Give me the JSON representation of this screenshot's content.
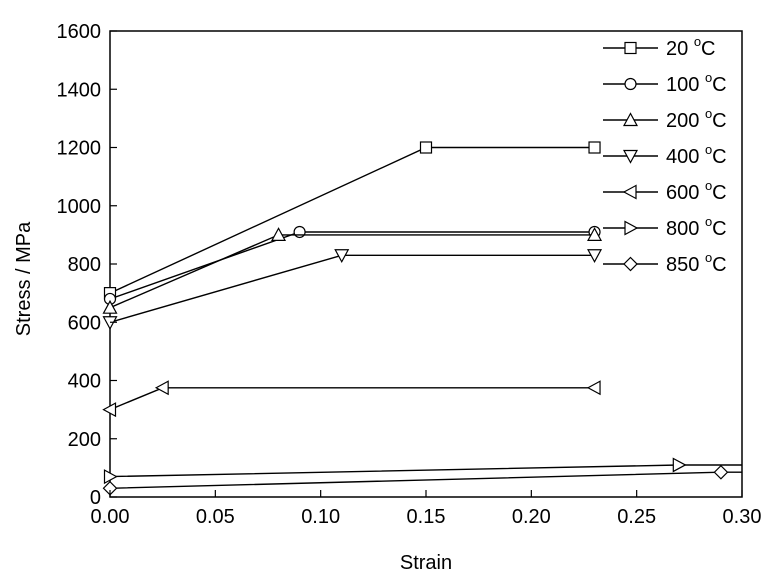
{
  "chart_data": {
    "type": "line",
    "xlabel": "Strain",
    "ylabel": "Stress / MPa",
    "xlim": [
      0,
      0.3
    ],
    "ylim": [
      0,
      1600
    ],
    "xticks": [
      "0.00",
      "0.05",
      "0.10",
      "0.15",
      "0.20",
      "0.25",
      "0.30"
    ],
    "yticks": [
      "0",
      "200",
      "400",
      "600",
      "800",
      "1000",
      "1200",
      "1400",
      "1600"
    ],
    "grid": false,
    "legend_position": "top-right",
    "series": [
      {
        "name": "20",
        "unit": "°C",
        "marker": "square",
        "points": [
          [
            0.0,
            700
          ],
          [
            0.15,
            1200
          ],
          [
            0.23,
            1200
          ]
        ]
      },
      {
        "name": "100",
        "unit": "°C",
        "marker": "circle",
        "points": [
          [
            0.0,
            680
          ],
          [
            0.09,
            910
          ],
          [
            0.23,
            910
          ]
        ]
      },
      {
        "name": "200",
        "unit": "°C",
        "marker": "triangle-up",
        "points": [
          [
            0.0,
            650
          ],
          [
            0.08,
            900
          ],
          [
            0.23,
            900
          ]
        ]
      },
      {
        "name": "400",
        "unit": "°C",
        "marker": "triangle-down",
        "points": [
          [
            0.0,
            600
          ],
          [
            0.11,
            830
          ],
          [
            0.23,
            830
          ]
        ]
      },
      {
        "name": "600",
        "unit": "°C",
        "marker": "triangle-left",
        "points": [
          [
            0.0,
            300
          ],
          [
            0.025,
            375
          ],
          [
            0.23,
            375
          ]
        ]
      },
      {
        "name": "800",
        "unit": "°C",
        "marker": "triangle-right",
        "points": [
          [
            0.0,
            70
          ],
          [
            0.27,
            110
          ],
          [
            0.3,
            110
          ]
        ]
      },
      {
        "name": "850",
        "unit": "°C",
        "marker": "diamond",
        "points": [
          [
            0.0,
            30
          ],
          [
            0.29,
            85
          ],
          [
            0.3,
            85
          ]
        ]
      }
    ]
  }
}
